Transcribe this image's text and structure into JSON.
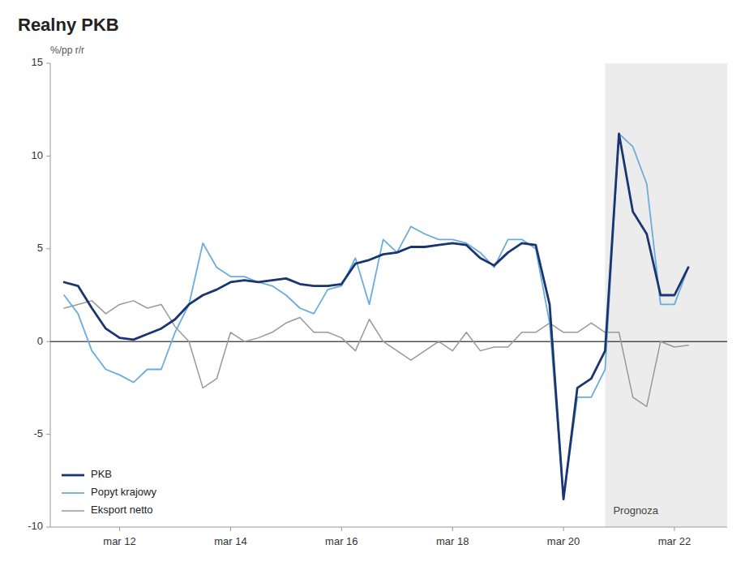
{
  "chart_data": {
    "type": "line",
    "title": "Realny PKB",
    "y_label": "%/pp r/r",
    "x": [
      2011.25,
      2011.5,
      2011.75,
      2012.0,
      2012.25,
      2012.5,
      2012.75,
      2013.0,
      2013.25,
      2013.5,
      2013.75,
      2014.0,
      2014.25,
      2014.5,
      2014.75,
      2015.0,
      2015.25,
      2015.5,
      2015.75,
      2016.0,
      2016.25,
      2016.5,
      2016.75,
      2017.0,
      2017.25,
      2017.5,
      2017.75,
      2018.0,
      2018.25,
      2018.5,
      2018.75,
      2019.0,
      2019.25,
      2019.5,
      2019.75,
      2020.0,
      2020.25,
      2020.5,
      2020.75,
      2021.0,
      2021.25,
      2021.5,
      2021.75,
      2022.0,
      2022.25,
      2022.5
    ],
    "series": [
      {
        "name": "PKB",
        "color": "#1a3570",
        "values": [
          3.2,
          3.0,
          1.8,
          0.7,
          0.2,
          0.1,
          0.4,
          0.7,
          1.2,
          2.0,
          2.5,
          2.8,
          3.2,
          3.3,
          3.2,
          3.3,
          3.4,
          3.1,
          3.0,
          3.0,
          3.1,
          4.2,
          4.4,
          4.7,
          4.8,
          5.1,
          5.1,
          5.2,
          5.3,
          5.2,
          4.5,
          4.1,
          4.8,
          5.3,
          5.2,
          2.0,
          -8.5,
          -2.5,
          -2.0,
          -0.5,
          11.2,
          7.0,
          5.8,
          2.5,
          2.5,
          4.0
        ]
      },
      {
        "name": "Popyt krajowy",
        "color": "#6aaddc",
        "values": [
          2.5,
          1.5,
          -0.5,
          -1.5,
          -1.8,
          -2.2,
          -1.5,
          -1.5,
          0.5,
          2.0,
          5.3,
          4.0,
          3.5,
          3.5,
          3.2,
          3.0,
          2.5,
          1.8,
          1.5,
          2.8,
          3.0,
          4.5,
          2.0,
          5.5,
          4.8,
          6.2,
          5.8,
          5.5,
          5.5,
          5.3,
          4.8,
          4.0,
          5.5,
          5.5,
          5.0,
          1.0,
          -8.5,
          -3.0,
          -3.0,
          -1.5,
          11.2,
          10.5,
          8.5,
          2.0,
          2.0,
          4.0
        ]
      },
      {
        "name": "Eksport netto",
        "color": "#999999",
        "values": [
          1.8,
          2.0,
          2.2,
          1.5,
          2.0,
          2.2,
          1.8,
          2.0,
          0.8,
          0.0,
          -2.5,
          -2.0,
          0.5,
          0.0,
          0.2,
          0.5,
          1.0,
          1.3,
          0.5,
          0.5,
          0.2,
          -0.5,
          1.2,
          0.0,
          -0.5,
          -1.0,
          -0.5,
          0.0,
          -0.5,
          0.5,
          -0.5,
          -0.3,
          -0.3,
          0.5,
          0.5,
          1.0,
          0.5,
          0.5,
          1.0,
          0.5,
          0.5,
          -3.0,
          -3.5,
          0.0,
          -0.3,
          -0.2
        ]
      }
    ],
    "xlim": [
      2011.0,
      2023.2
    ],
    "xticks": [
      {
        "value": 2012.25,
        "label": "mar 12"
      },
      {
        "value": 2014.25,
        "label": "mar 14"
      },
      {
        "value": 2016.25,
        "label": "mar 16"
      },
      {
        "value": 2018.25,
        "label": "mar 18"
      },
      {
        "value": 2020.25,
        "label": "mar 20"
      },
      {
        "value": 2022.25,
        "label": "mar 22"
      }
    ],
    "ylim": [
      -10,
      15
    ],
    "yticks": [
      -10,
      -5,
      0,
      5,
      10,
      15
    ],
    "reference_line": 0,
    "forecast": {
      "label": "Prognoza",
      "x_start": 2021.0
    },
    "grid": false,
    "legend": "lower left"
  }
}
